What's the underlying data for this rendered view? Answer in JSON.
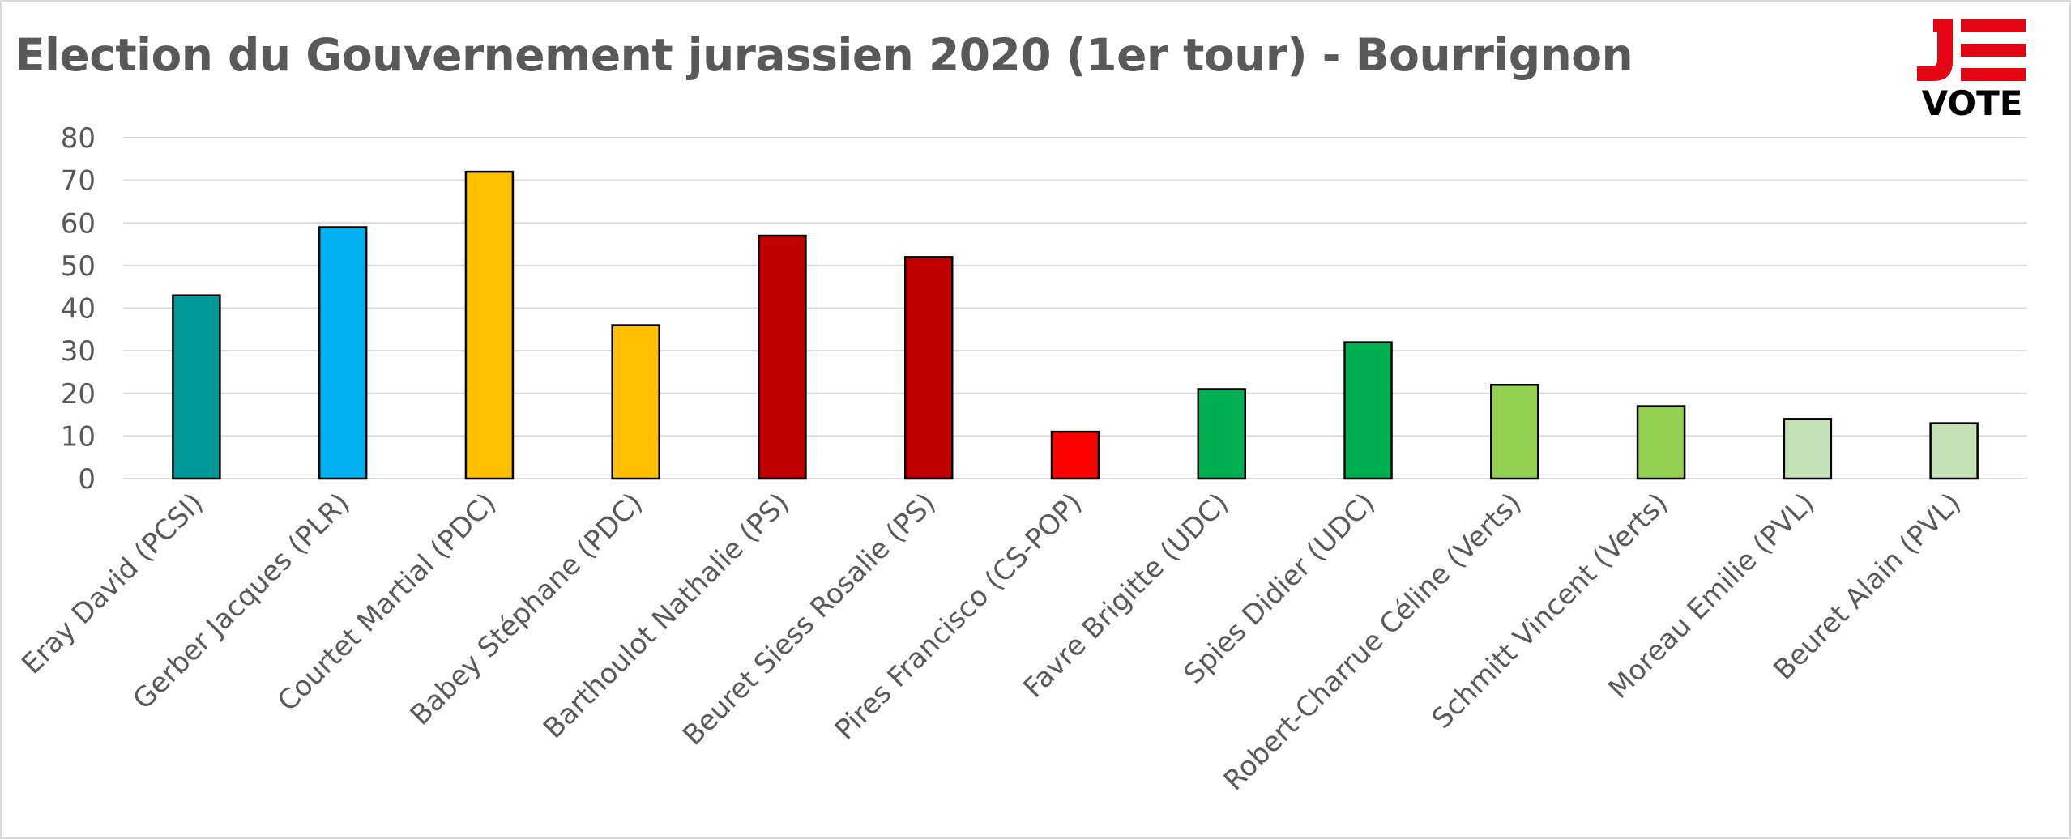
{
  "chart_data": {
    "type": "bar",
    "title": "Election du Gouvernement jurassien 2020 (1er tour) - Bourrignon",
    "xlabel": "",
    "ylabel": "",
    "ylim": [
      0,
      80
    ],
    "yticks": [
      0,
      10,
      20,
      30,
      40,
      50,
      60,
      70,
      80
    ],
    "grid": true,
    "legend": "none",
    "categories": [
      "Eray David (PCSI)",
      "Gerber Jacques (PLR)",
      "Courtet Martial (PDC)",
      "Babey Stéphane (PDC)",
      "Barthoulot Nathalie (PS)",
      "Beuret Siess Rosalie (PS)",
      "Pires Francisco (CS-POP)",
      "Favre Brigitte (UDC)",
      "Spies Didier (UDC)",
      "Robert-Charrue Céline (Verts)",
      "Schmitt Vincent (Verts)",
      "Moreau Emilie (PVL)",
      "Beuret Alain (PVL)"
    ],
    "values": [
      43,
      59,
      72,
      36,
      57,
      52,
      11,
      21,
      32,
      22,
      17,
      14,
      13
    ],
    "colors": [
      "#00999a",
      "#00b0f0",
      "#ffc000",
      "#ffc000",
      "#c00000",
      "#c00000",
      "#ff0000",
      "#00b050",
      "#00b050",
      "#92d050",
      "#92d050",
      "#c5e0b4",
      "#c5e0b4"
    ]
  },
  "logo": {
    "letters": "JE",
    "word": "VOTE",
    "accent": "#e30613",
    "dark": "#000000"
  }
}
